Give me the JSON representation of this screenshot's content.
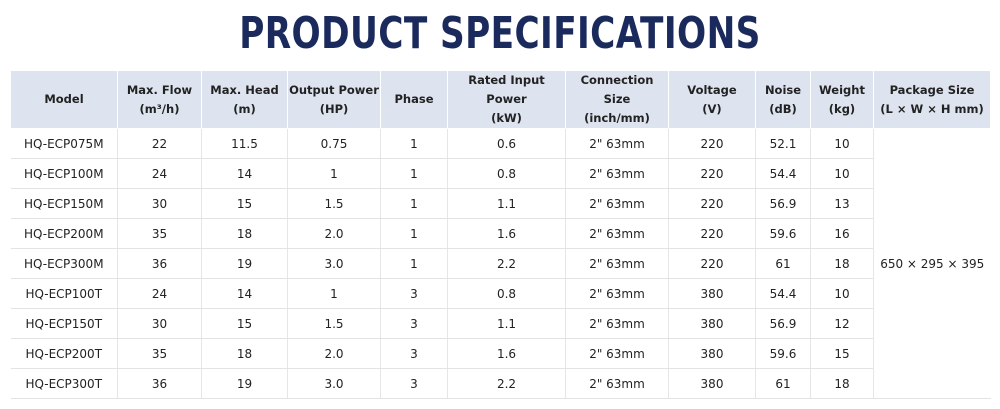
{
  "header": {
    "title": "PRODUCT SPECIFICATIONS"
  },
  "table": {
    "columns": [
      {
        "name": "Model"
      },
      {
        "name": "Max. Flow",
        "unit": "(m³/h)"
      },
      {
        "name": "Max. Head",
        "unit": "(m)"
      },
      {
        "name": "Output Power",
        "unit": "(HP)"
      },
      {
        "name": "Phase"
      },
      {
        "name": "Rated Input Power",
        "unit": "(kW)"
      },
      {
        "name": "Connection Size",
        "unit": "(inch/mm)"
      },
      {
        "name": "Voltage",
        "unit": "(V)"
      },
      {
        "name": "Noise",
        "unit": "(dB)"
      },
      {
        "name": "Weight",
        "unit": "(kg)"
      },
      {
        "name": "Package Size",
        "unit": "(L × W × H mm)"
      }
    ],
    "rows": [
      [
        "HQ-ECP075M",
        "22",
        "11.5",
        "0.75",
        "1",
        "0.6",
        "2\" 63mm",
        "220",
        "52.1",
        "10"
      ],
      [
        "HQ-ECP100M",
        "24",
        "14",
        "1",
        "1",
        "0.8",
        "2\" 63mm",
        "220",
        "54.4",
        "10"
      ],
      [
        "HQ-ECP150M",
        "30",
        "15",
        "1.5",
        "1",
        "1.1",
        "2\" 63mm",
        "220",
        "56.9",
        "13"
      ],
      [
        "HQ-ECP200M",
        "35",
        "18",
        "2.0",
        "1",
        "1.6",
        "2\" 63mm",
        "220",
        "59.6",
        "16"
      ],
      [
        "HQ-ECP300M",
        "36",
        "19",
        "3.0",
        "1",
        "2.2",
        "2\" 63mm",
        "220",
        "61",
        "18"
      ],
      [
        "HQ-ECP100T",
        "24",
        "14",
        "1",
        "3",
        "0.8",
        "2\" 63mm",
        "380",
        "54.4",
        "10"
      ],
      [
        "HQ-ECP150T",
        "30",
        "15",
        "1.5",
        "3",
        "1.1",
        "2\" 63mm",
        "380",
        "56.9",
        "12"
      ],
      [
        "HQ-ECP200T",
        "35",
        "18",
        "2.0",
        "3",
        "1.6",
        "2\" 63mm",
        "380",
        "59.6",
        "15"
      ],
      [
        "HQ-ECP300T",
        "36",
        "19",
        "3.0",
        "3",
        "2.2",
        "2\" 63mm",
        "380",
        "61",
        "18"
      ]
    ],
    "package_size": "650 × 295 × 395"
  }
}
